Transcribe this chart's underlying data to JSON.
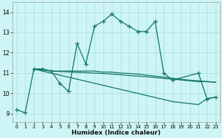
{
  "xlabel": "Humidex (Indice chaleur)",
  "bg_color": "#cef5f5",
  "grid_color": "#aadddd",
  "line_color": "#1a7a6e",
  "xlim": [
    -0.5,
    23.5
  ],
  "ylim": [
    8.6,
    14.5
  ],
  "xticks": [
    0,
    1,
    2,
    3,
    4,
    5,
    6,
    7,
    8,
    9,
    10,
    11,
    12,
    13,
    14,
    15,
    16,
    17,
    18,
    19,
    20,
    21,
    22,
    23
  ],
  "yticks": [
    9,
    10,
    11,
    12,
    13,
    14
  ],
  "series": [
    {
      "x": [
        0,
        1,
        2,
        3,
        4,
        5,
        6,
        7,
        8,
        9,
        10,
        11,
        12,
        13,
        14,
        15,
        16,
        17,
        18,
        21,
        22,
        23
      ],
      "y": [
        9.2,
        9.05,
        11.2,
        11.2,
        11.1,
        10.5,
        10.1,
        12.45,
        11.45,
        13.3,
        13.55,
        13.9,
        13.55,
        13.3,
        13.05,
        13.05,
        13.55,
        11.0,
        10.65,
        11.0,
        9.72,
        9.82
      ],
      "style": "-",
      "marker": "+",
      "markersize": 4,
      "linewidth": 1.0
    },
    {
      "x": [
        2,
        3,
        4,
        5,
        6,
        7,
        8,
        9,
        10,
        11,
        12,
        13,
        14,
        15,
        16,
        17,
        18,
        19,
        20,
        21,
        22,
        23
      ],
      "y": [
        11.2,
        11.2,
        11.1,
        11.1,
        11.1,
        11.1,
        11.1,
        11.1,
        11.05,
        11.05,
        11.0,
        10.98,
        10.95,
        10.9,
        10.85,
        10.8,
        10.75,
        10.7,
        10.65,
        10.62,
        10.58,
        10.55
      ],
      "style": "-",
      "marker": null,
      "markersize": 0,
      "linewidth": 1.0
    },
    {
      "x": [
        2,
        3,
        4,
        5,
        6,
        7,
        8,
        9,
        10,
        11,
        12,
        13,
        14,
        15,
        16,
        17,
        18,
        19,
        20,
        21,
        22,
        23
      ],
      "y": [
        11.2,
        11.1,
        11.0,
        10.9,
        10.8,
        10.7,
        10.6,
        10.5,
        10.4,
        10.3,
        10.2,
        10.1,
        10.0,
        9.9,
        9.8,
        9.7,
        9.6,
        9.55,
        9.5,
        9.45,
        9.75,
        9.82
      ],
      "style": "-",
      "marker": null,
      "markersize": 0,
      "linewidth": 1.0
    },
    {
      "x": [
        2,
        3,
        4,
        5,
        6,
        7,
        8,
        9,
        10,
        11,
        12,
        13,
        14,
        15,
        16,
        17,
        18,
        19,
        20,
        21,
        22,
        23
      ],
      "y": [
        11.18,
        11.15,
        11.1,
        11.08,
        11.06,
        11.04,
        11.02,
        11.0,
        10.98,
        10.95,
        10.92,
        10.88,
        10.85,
        10.82,
        10.78,
        10.74,
        10.7,
        10.66,
        10.62,
        10.58,
        10.58,
        10.55
      ],
      "style": "-",
      "marker": null,
      "markersize": 0,
      "linewidth": 1.0
    }
  ]
}
